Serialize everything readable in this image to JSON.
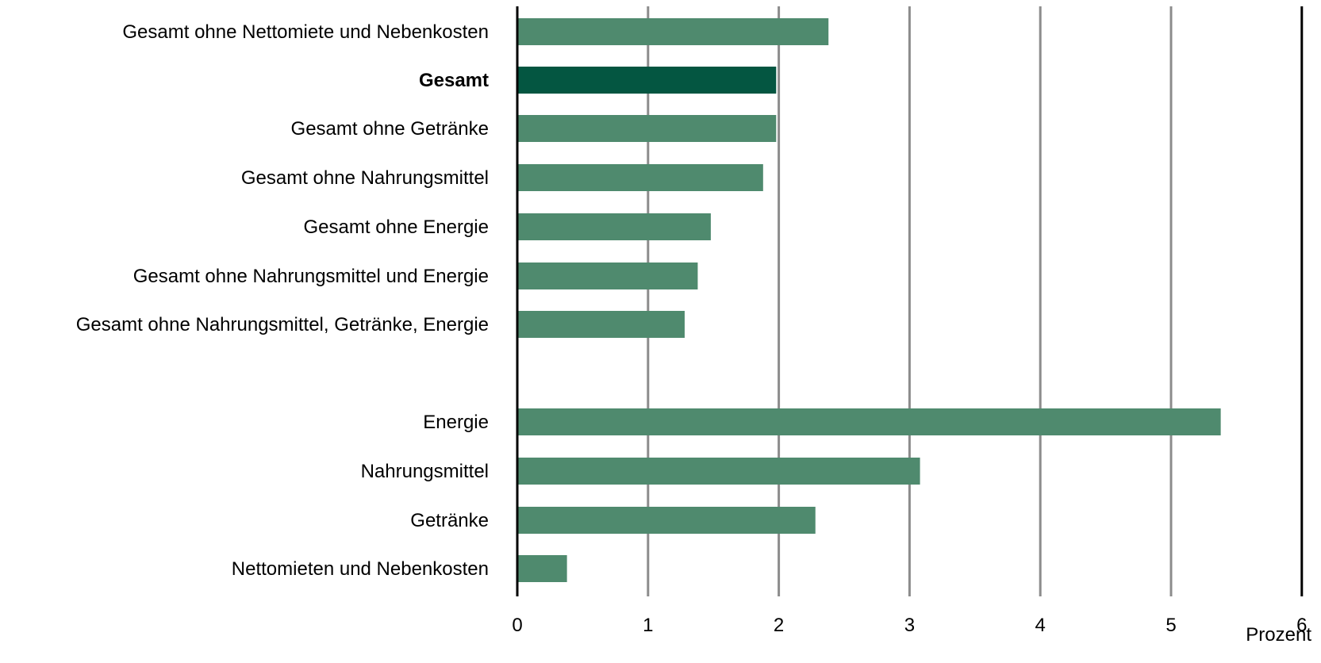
{
  "chart_data": {
    "type": "bar",
    "orientation": "horizontal",
    "categories": [
      "Gesamt ohne Nettomiete und Nebenkosten",
      "Gesamt",
      "Gesamt ohne Getränke",
      "Gesamt ohne Nahrungsmittel",
      "Gesamt ohne Energie",
      "Gesamt ohne Nahrungsmittel und Energie",
      "Gesamt ohne Nahrungsmittel, Getränke, Energie",
      "Energie",
      "Nahrungsmittel",
      "Getränke",
      "Nettomieten und Nebenkosten"
    ],
    "values": [
      2.38,
      1.98,
      1.98,
      1.88,
      1.48,
      1.38,
      1.28,
      5.38,
      3.08,
      2.28,
      0.38
    ],
    "highlight": [
      "Gesamt"
    ],
    "xlim": [
      0,
      6
    ],
    "xticks": [
      "0",
      "1",
      "2",
      "3",
      "4",
      "5",
      "6"
    ],
    "xlabel": "Prozent",
    "grid": "vertical-gridlines",
    "colors": {
      "bar": "#4f8a6e",
      "highlight_bar": "#045641",
      "grid": "#8c8c8c",
      "axis": "#000000"
    }
  }
}
